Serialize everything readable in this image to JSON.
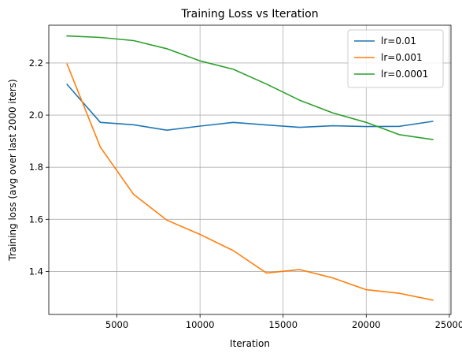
{
  "chart_data": {
    "type": "line",
    "title": "Training Loss vs Iteration",
    "xlabel": "Iteration",
    "ylabel": "Training loss (avg over last 2000 iters)",
    "xlim": [
      900,
      25100
    ],
    "ylim": [
      1.235,
      2.345
    ],
    "xticks": [
      5000,
      10000,
      15000,
      20000,
      25000
    ],
    "xtick_labels": [
      "5000",
      "10000",
      "15000",
      "20000",
      "25000"
    ],
    "yticks": [
      1.4,
      1.6,
      1.8,
      2.0,
      2.2
    ],
    "ytick_labels": [
      "1.4",
      "1.6",
      "1.8",
      "2.0",
      "2.2"
    ],
    "grid": true,
    "legend_position": "top-right",
    "x": [
      2000,
      4000,
      6000,
      8000,
      10000,
      12000,
      14000,
      16000,
      18000,
      20000,
      22000,
      24000
    ],
    "series": [
      {
        "name": "lr=0.01",
        "color": "#1f77b4",
        "values": [
          2.118,
          1.972,
          1.963,
          1.942,
          1.958,
          1.972,
          1.962,
          1.953,
          1.959,
          1.956,
          1.957,
          1.976
        ]
      },
      {
        "name": "lr=0.001",
        "color": "#ff7f0e",
        "values": [
          2.196,
          1.877,
          1.696,
          1.597,
          1.542,
          1.48,
          1.394,
          1.407,
          1.375,
          1.33,
          1.316,
          1.29
        ]
      },
      {
        "name": "lr=0.0001",
        "color": "#2ca02c",
        "values": [
          2.304,
          2.298,
          2.286,
          2.255,
          2.208,
          2.176,
          2.119,
          2.057,
          2.008,
          1.972,
          1.925,
          1.906
        ]
      }
    ]
  }
}
